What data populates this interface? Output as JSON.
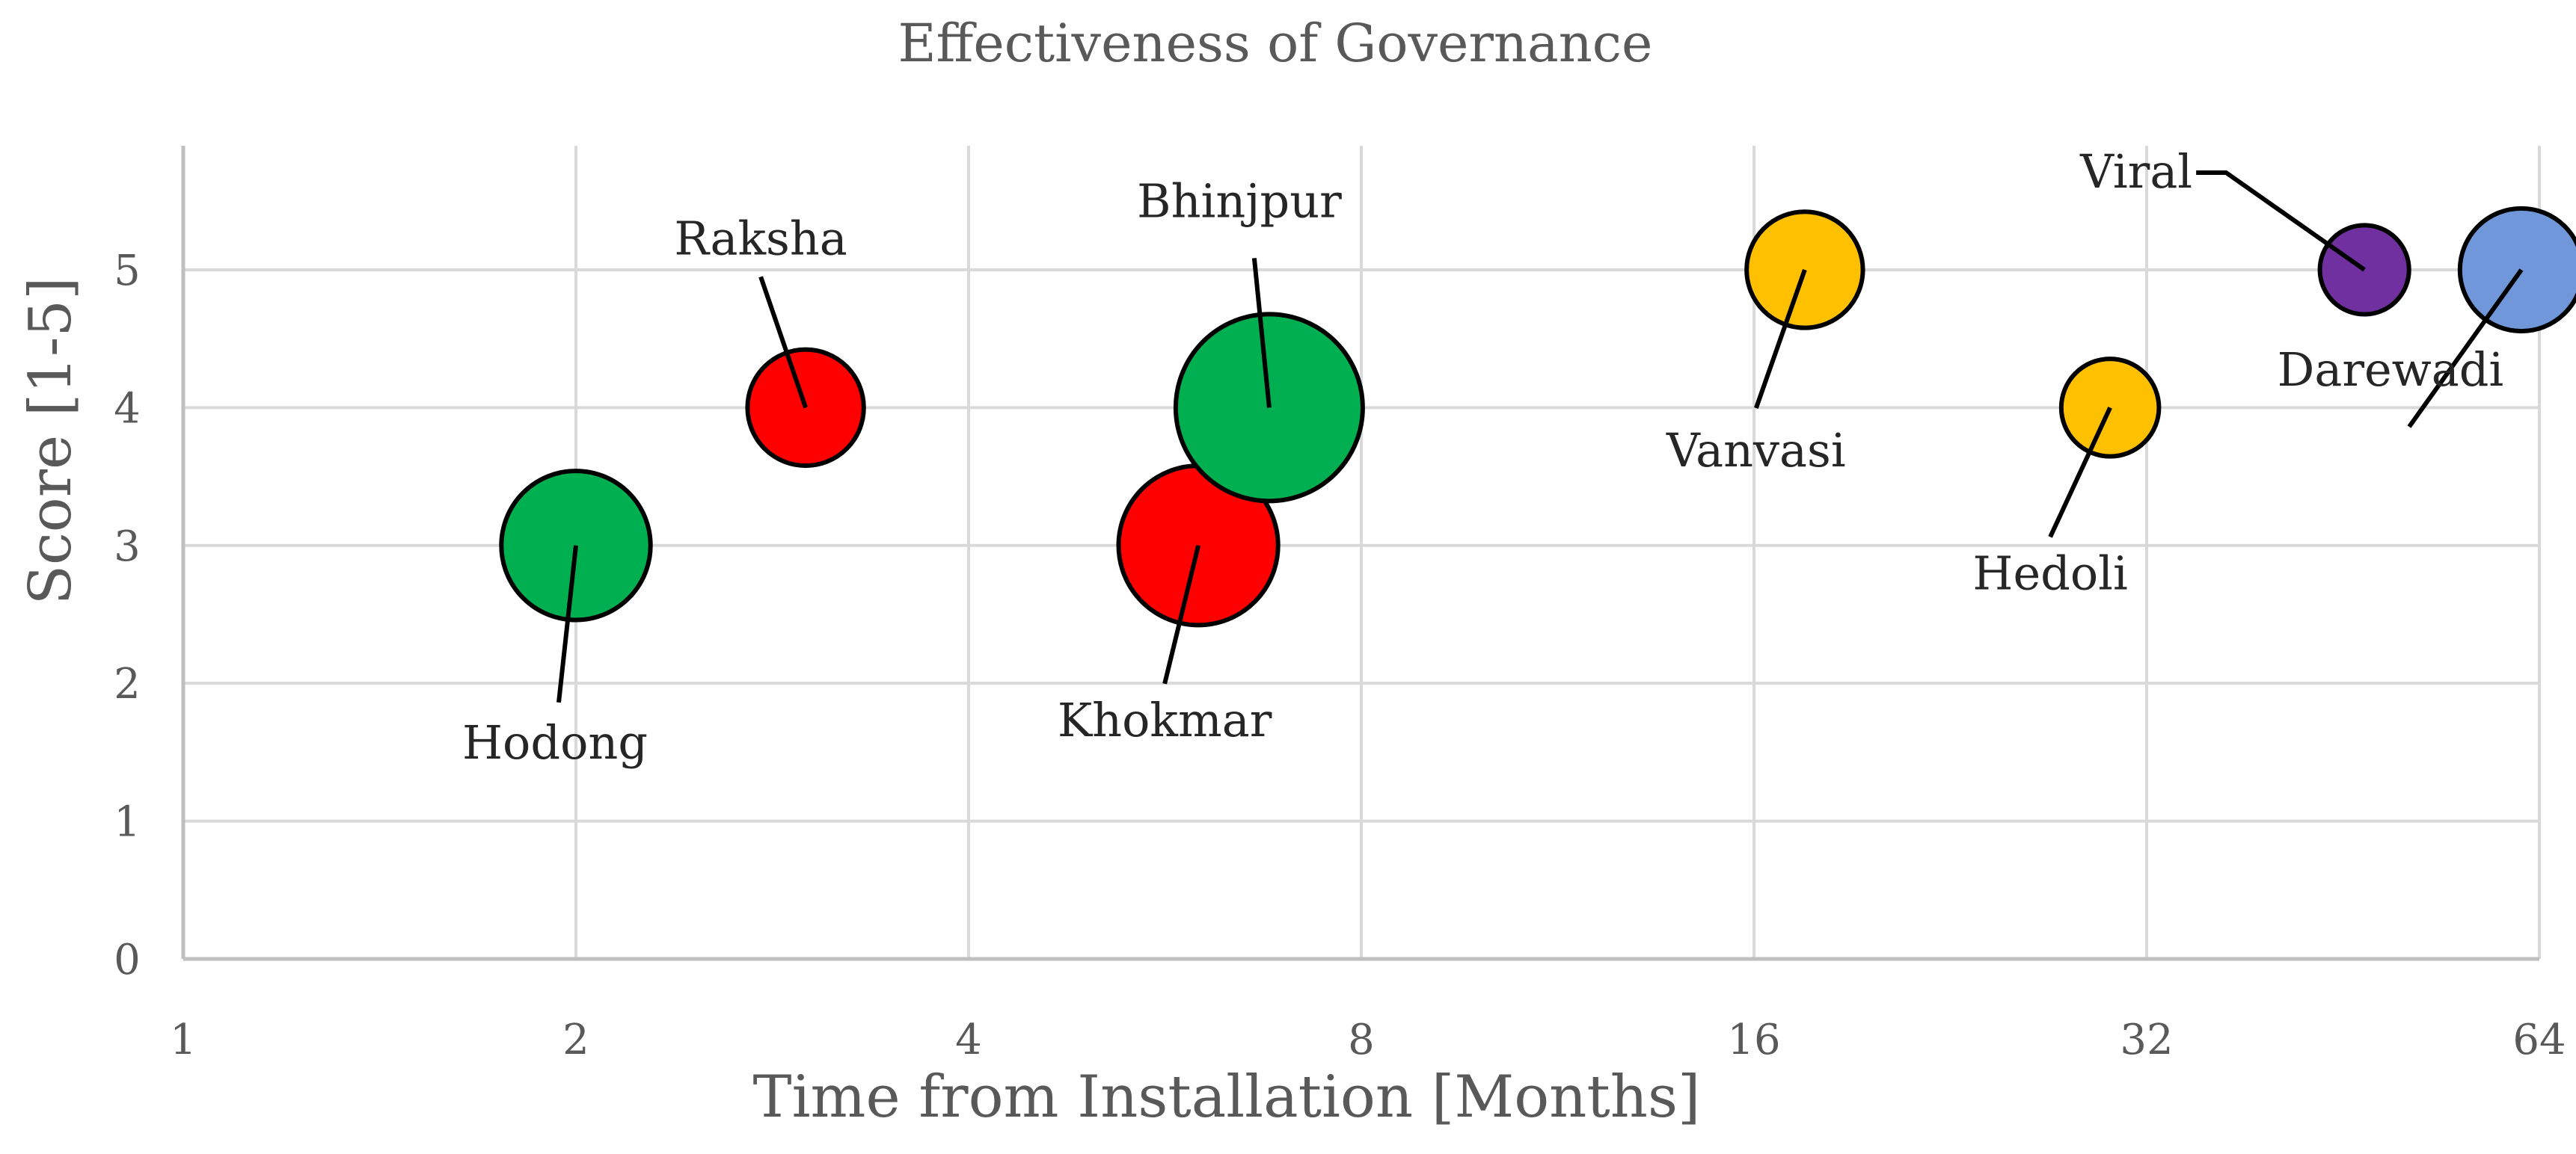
{
  "chart_data": {
    "type": "scatter",
    "subtype": "bubble",
    "title": "Effectiveness of Governance",
    "xlabel": "Time from Installation [Months]",
    "ylabel": "Score [1-5]",
    "x_scale": "log2",
    "xlim": [
      1,
      64
    ],
    "ylim": [
      0,
      5.9
    ],
    "x_ticks": [
      "1",
      "2",
      "4",
      "8",
      "16",
      "32",
      "64"
    ],
    "y_ticks": [
      "0",
      "1",
      "2",
      "3",
      "4",
      "5"
    ],
    "grid": true,
    "legend": "none",
    "points": [
      {
        "label": "Hodong",
        "x": 2,
        "y": 3,
        "size": 1.4,
        "color": "#00b050"
      },
      {
        "label": "Raksha",
        "x": 3,
        "y": 4,
        "size": 0.85,
        "color": "#ff0000"
      },
      {
        "label": "Khokmar",
        "x": 6,
        "y": 3,
        "size": 1.6,
        "color": "#ff0000"
      },
      {
        "label": "Bhinjpur",
        "x": 6.8,
        "y": 4,
        "size": 2.2,
        "color": "#00b050"
      },
      {
        "label": "Vanvasi",
        "x": 17.5,
        "y": 5,
        "size": 0.85,
        "color": "#ffc000"
      },
      {
        "label": "Hedoli",
        "x": 30,
        "y": 4,
        "size": 0.6,
        "color": "#ffc000"
      },
      {
        "label": "Viral",
        "x": 47,
        "y": 5,
        "size": 0.5,
        "color": "#7030a0"
      },
      {
        "label": "Darewadi",
        "x": 62,
        "y": 5,
        "size": 0.95,
        "color": "#6f97d9"
      }
    ]
  }
}
